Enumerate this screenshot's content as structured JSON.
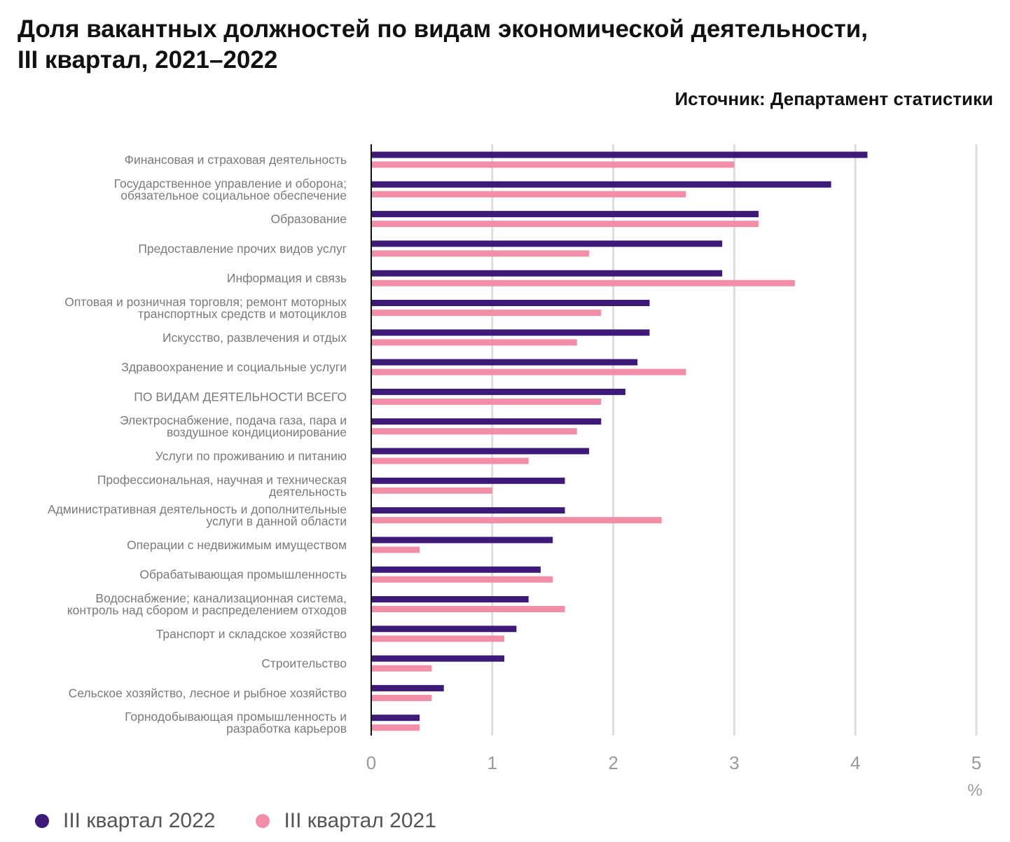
{
  "title_lines": [
    "Доля вакантных должностей по видам экономической деятельности,",
    "III квартал, 2021–2022"
  ],
  "source": "Источник: Департамент статистики",
  "colors": {
    "series_2022": "#3d1a78",
    "series_2021": "#f28ea8",
    "grid": "#dddddd",
    "axis": "#111111"
  },
  "legend": [
    {
      "label": "III квартал 2022",
      "color": "#3d1a78"
    },
    {
      "label": "III квартал 2021",
      "color": "#f28ea8"
    }
  ],
  "chart_data": {
    "type": "bar",
    "orientation": "horizontal",
    "title": "Доля вакантных должностей по видам экономической деятельности, III квартал, 2021–2022",
    "xlabel": "%",
    "ylabel": "",
    "xlim": [
      0,
      5
    ],
    "xticks": [
      0,
      1,
      2,
      3,
      4,
      5
    ],
    "grid": true,
    "legend_position": "bottom-left",
    "categories": [
      [
        "Финансовая и страховая деятельность"
      ],
      [
        "Государственное управление и оборона;",
        "обязательное социальное обеспечение"
      ],
      [
        "Образование"
      ],
      [
        "Предоставление прочих видов услуг"
      ],
      [
        "Информация и связь"
      ],
      [
        "Оптовая и розничная торговля; ремонт моторных",
        "транспортных средств и мотоциклов"
      ],
      [
        "Искусство, развлечения и отдых"
      ],
      [
        "Здравоохранение и социальные услуги"
      ],
      [
        "ПО ВИДАМ ДЕЯТЕЛЬНОСТИ ВСЕГО"
      ],
      [
        "Электроснабжение, подача газа, пара и",
        "воздушное кондиционирование"
      ],
      [
        "Услуги по проживанию и питанию"
      ],
      [
        "Профессиональная, научная и техническая",
        "деятельность"
      ],
      [
        "Административная деятельность и дополнительные",
        "услуги в данной области"
      ],
      [
        "Операции с недвижимым имуществом"
      ],
      [
        "Обрабатывающая промышленность"
      ],
      [
        "Водоснабжение; канализационная система,",
        "контроль над сбором и распределением отходов"
      ],
      [
        "Транспорт и складское хозяйство"
      ],
      [
        "Строительство"
      ],
      [
        "Сельское хозяйство, лесное и рыбное хозяйство"
      ],
      [
        "Горнодобывающая промышленность и",
        "разработка карьеров"
      ]
    ],
    "series": [
      {
        "name": "III квартал 2022",
        "values": [
          4.1,
          3.8,
          3.2,
          2.9,
          2.9,
          2.3,
          2.3,
          2.2,
          2.1,
          1.9,
          1.8,
          1.6,
          1.6,
          1.5,
          1.4,
          1.3,
          1.2,
          1.1,
          0.6,
          0.4
        ]
      },
      {
        "name": "III квартал 2021",
        "values": [
          3.0,
          2.6,
          3.2,
          1.8,
          3.5,
          1.9,
          1.7,
          2.6,
          1.9,
          1.7,
          1.3,
          1.0,
          2.4,
          0.4,
          1.5,
          1.6,
          1.1,
          0.5,
          0.5,
          0.4
        ]
      }
    ]
  }
}
